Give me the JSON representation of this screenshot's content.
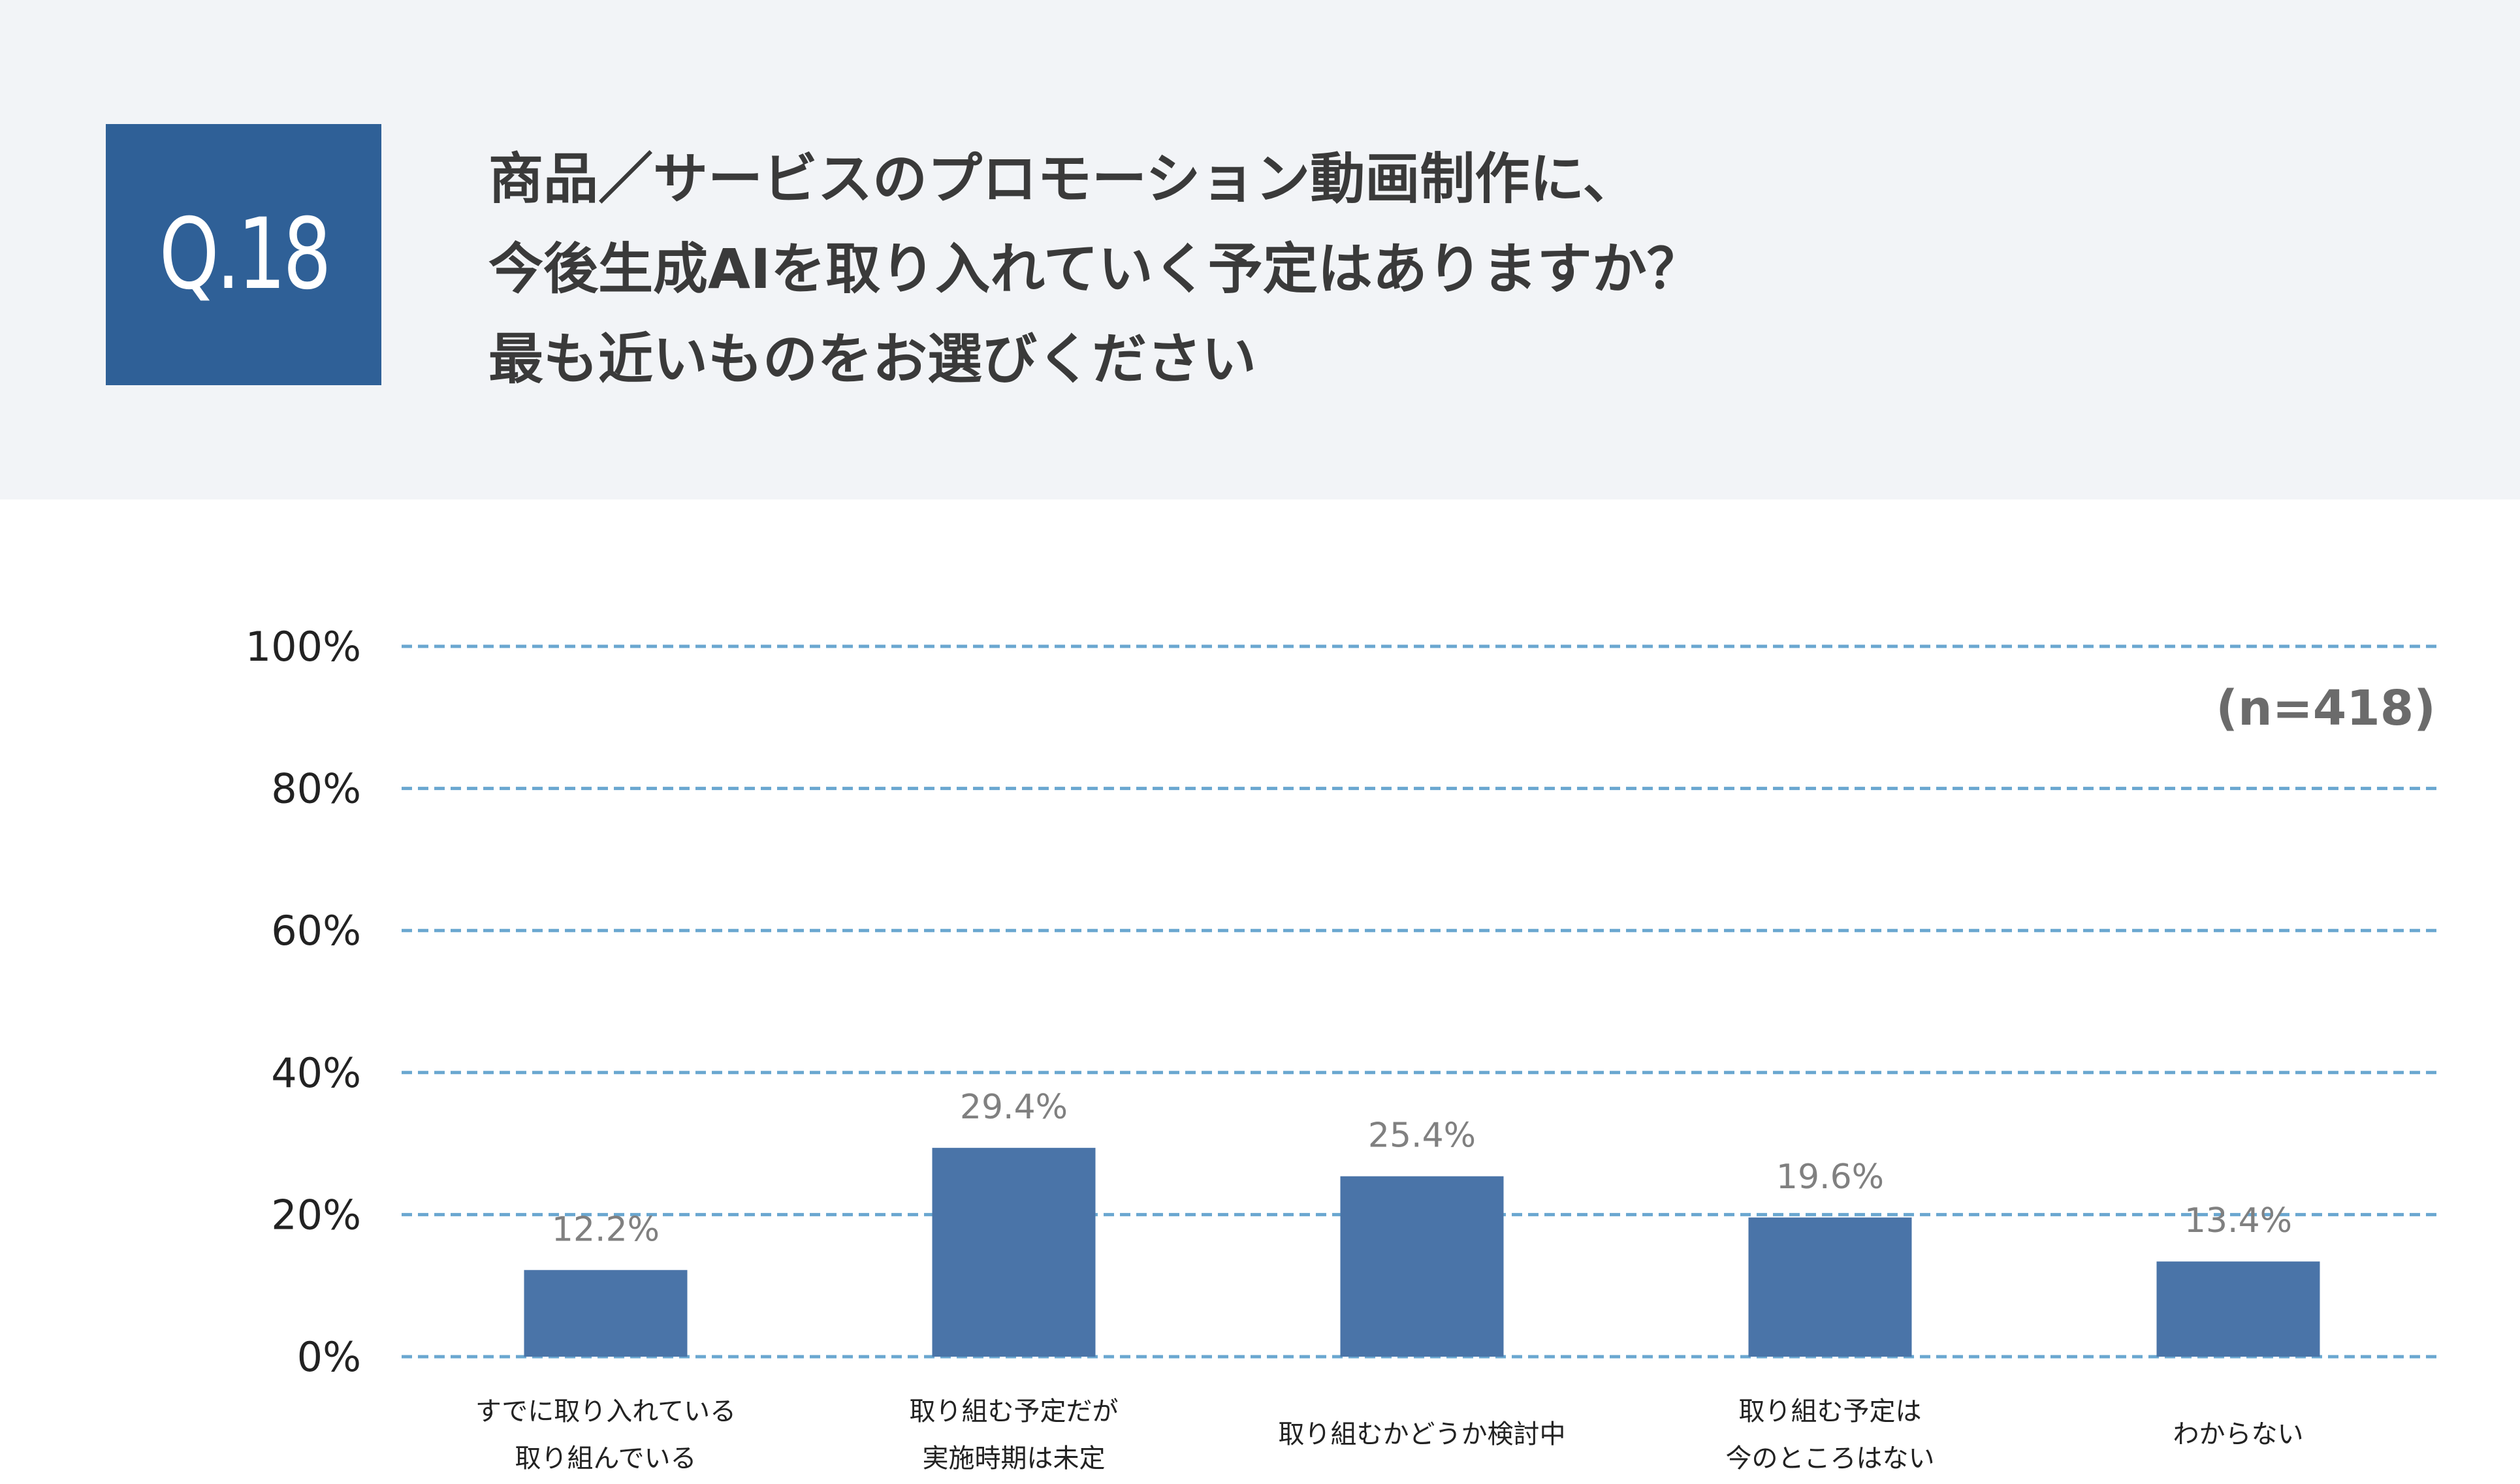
{
  "header": {
    "question_number": "Q.18",
    "question_lines": [
      "商品／サービスのプロモーション動画制作に、",
      "今後生成AIを取り入れていく予定はありますか？",
      "最も近いものをお選びください"
    ]
  },
  "chart_data": {
    "type": "bar",
    "categories": [
      [
        "すでに取り入れている",
        "取り組んでいる"
      ],
      [
        "取り組む予定だが",
        "実施時期は未定"
      ],
      [
        "取り組むかどうか検討中"
      ],
      [
        "取り組む予定は",
        "今のところはない"
      ],
      [
        "わからない"
      ]
    ],
    "values": [
      12.2,
      29.4,
      25.4,
      19.6,
      13.4
    ],
    "value_labels": [
      "12.2%",
      "29.4%",
      "25.4%",
      "19.6%",
      "13.4%"
    ],
    "y_ticks": [
      "0%",
      "20%",
      "40%",
      "60%",
      "80%",
      "100%"
    ],
    "ylim": [
      0,
      100
    ],
    "grid": true,
    "sample_size": "(n=418)",
    "colors": {
      "bar": "#4a74a8",
      "grid": "#6aa7d0",
      "value_label": "#808080"
    }
  }
}
